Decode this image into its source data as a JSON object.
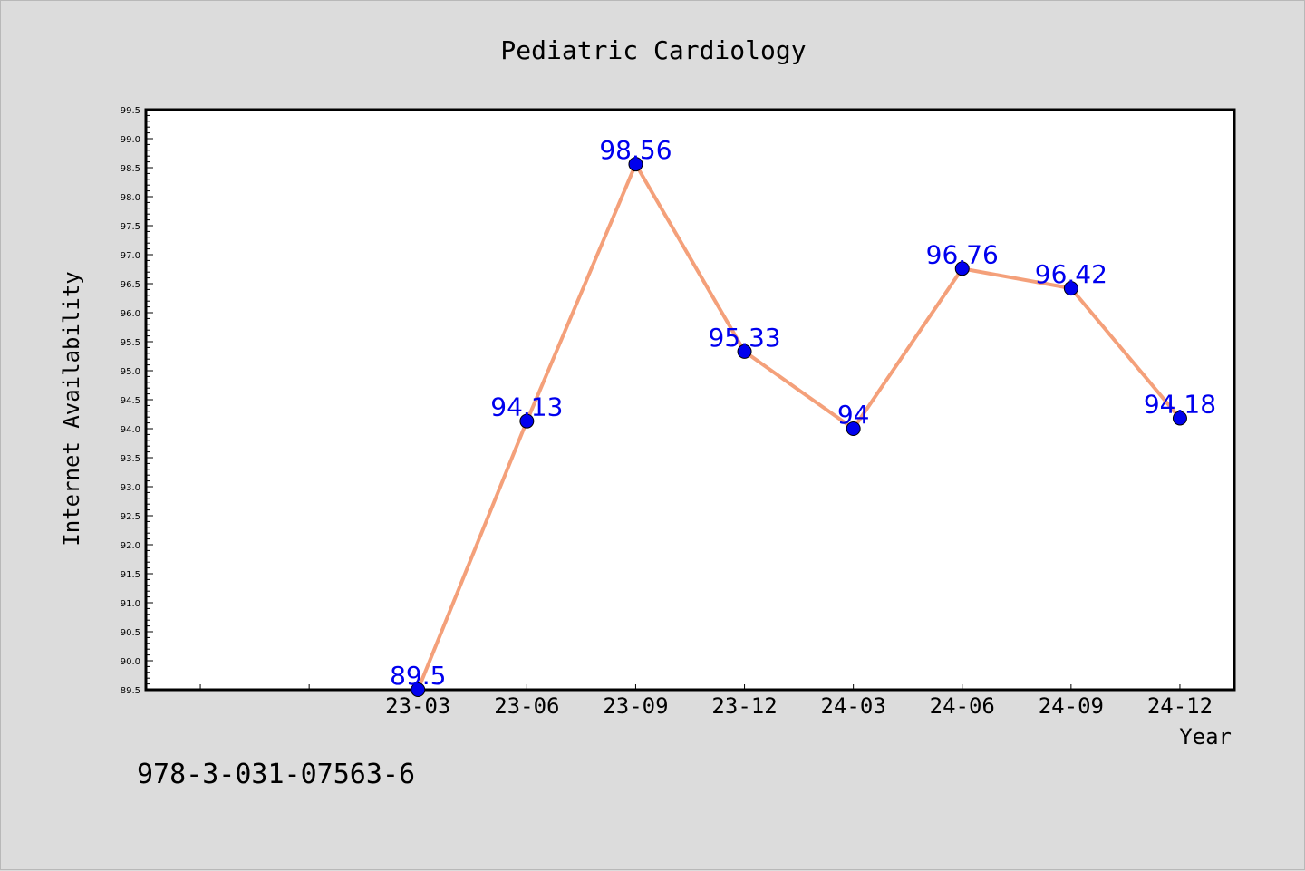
{
  "chart_data": {
    "type": "line",
    "title": "Pediatric Cardiology",
    "xlabel": "Year",
    "ylabel": "Internet Availability",
    "categories": [
      "23-03",
      "23-06",
      "23-09",
      "23-12",
      "24-03",
      "24-06",
      "24-09",
      "24-12"
    ],
    "series": [
      {
        "values": [
          89.5,
          94.13,
          98.56,
          95.33,
          94,
          96.76,
          96.42,
          94.18
        ],
        "data_labels": [
          "89.5",
          "94.13",
          "98.56",
          "95.33",
          "94",
          "96.76",
          "96.42",
          "94.18"
        ]
      }
    ],
    "ylim": [
      89.5,
      99.5
    ],
    "ytick_step": 0.5,
    "grid": false,
    "line_color": "#f4a07a",
    "marker_color": "#0000ee",
    "label_color": "#0000ee"
  },
  "footer": {
    "identifier": "978-3-031-07563-6"
  }
}
